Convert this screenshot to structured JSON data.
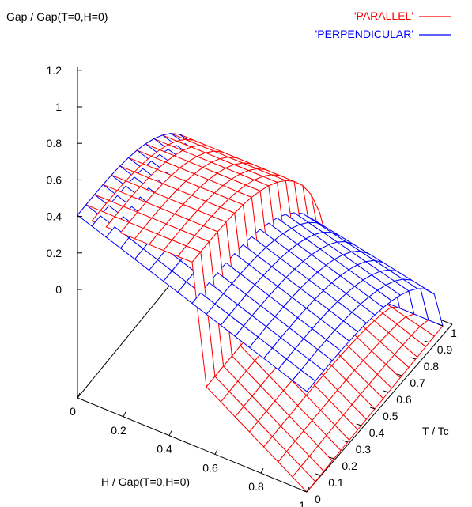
{
  "chart_data": {
    "type": "surface3d",
    "title": "",
    "zlabel": "Gap / Gap(T=0,H=0)",
    "xlabel": "H / Gap(T=0,H=0)",
    "ylabel": "T / Tc",
    "xlim": [
      0,
      1
    ],
    "ylim": [
      0,
      1
    ],
    "zlim": [
      0,
      1.2
    ],
    "x_ticks": [
      "0",
      "0.2",
      "0.4",
      "0.6",
      "0.8",
      "1"
    ],
    "y_ticks": [
      "0",
      "0.1",
      "0.2",
      "0.3",
      "0.4",
      "0.5",
      "0.6",
      "0.7",
      "0.8",
      "0.9",
      "1"
    ],
    "z_ticks": [
      "0",
      "0.2",
      "0.4",
      "0.6",
      "0.8",
      "1",
      "1.2"
    ],
    "legend_position": "top-right",
    "series": [
      {
        "name": "'PARALLEL'",
        "color": "#ff0000",
        "surface": "gap_parallel"
      },
      {
        "name": "'PERPENDICULAR'",
        "color": "#0000ff",
        "surface": "gap_perpendicular"
      }
    ]
  }
}
